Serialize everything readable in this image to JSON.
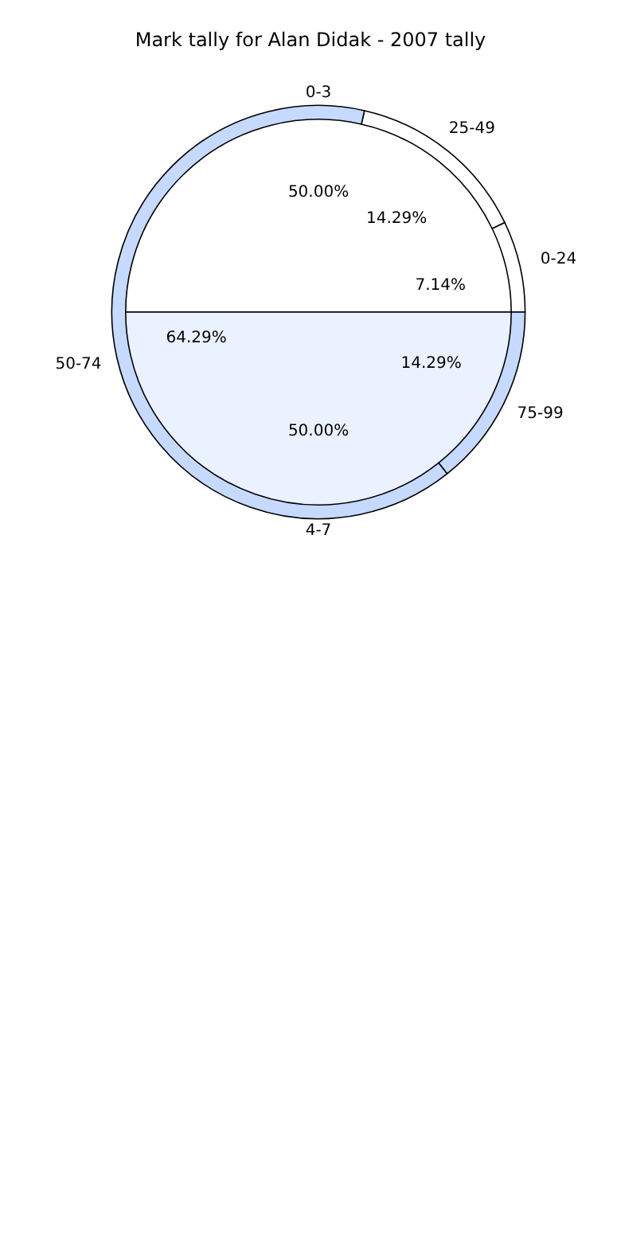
{
  "chart_data": [
    {
      "type": "donut",
      "title": "Mark tally for Alan Didak - 2007 tally",
      "categories": [
        "0-24",
        "25-49",
        "50-74",
        "75-99"
      ],
      "values": [
        7.14,
        14.29,
        64.29,
        14.29
      ],
      "colors": [
        "#ffffff",
        "#ffffff",
        "#c6d9ff",
        "#c6d9ff"
      ],
      "value_labels": [
        "7.14%",
        "14.29%",
        "64.29%",
        "14.29%"
      ]
    },
    {
      "type": "pie",
      "categories": [
        "0-3",
        "4-7"
      ],
      "values": [
        50,
        50
      ],
      "colors": [
        "#ffffff",
        "#eaf1ff"
      ],
      "value_labels": [
        "50.00%",
        "50.00%"
      ]
    }
  ]
}
